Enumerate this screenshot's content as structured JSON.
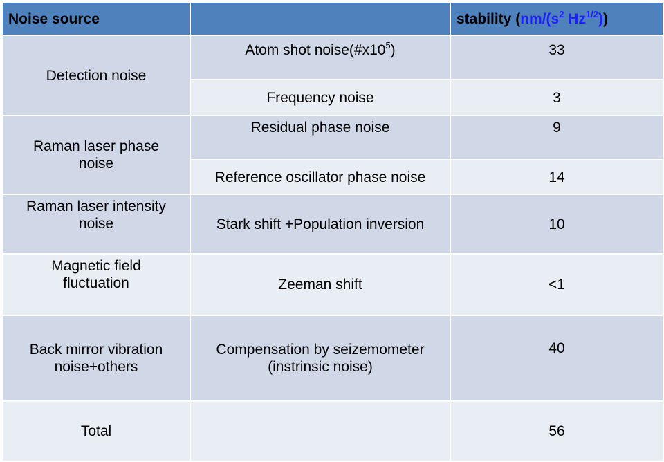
{
  "header": {
    "col1": "Noise source",
    "col2": "",
    "col3_prefix": "stability  (",
    "col3_unit_a": "nm/(s",
    "col3_sup_a": "2",
    "col3_unit_b": " Hz",
    "col3_sup_b": "1/2",
    "col3_unit_c": ")",
    "col3_suffix": ")"
  },
  "rows": {
    "detection": {
      "source": "Detection noise",
      "item1_text": "Atom shot noise(#x10",
      "item1_sup": "5",
      "item1_close": ")",
      "item1_value": "33",
      "item2_text": "Frequency noise",
      "item2_value": "3"
    },
    "raman_phase": {
      "source_line1": "Raman  laser phase",
      "source_line2": "noise",
      "item1_text": "Residual phase noise",
      "item1_value": "9",
      "item2_text": "Reference oscillator phase noise",
      "item2_value": "14"
    },
    "raman_intensity": {
      "source_line1": "Raman  laser intensity",
      "source_line2": "noise",
      "item_text": "Stark shift +Population inversion",
      "item_value": "10"
    },
    "magnetic": {
      "source_line1": "Magnetic field",
      "source_line2": "fluctuation",
      "item_text": "Zeeman shift",
      "item_value": "<1"
    },
    "mirror": {
      "source_line1": "Back mirror vibration",
      "source_line2": "noise+others",
      "item_line1": "Compensation by seizemometer",
      "item_line2": "(instrinsic noise)",
      "item_value": "40"
    },
    "total": {
      "source": "Total",
      "item_text": "",
      "item_value": "56"
    }
  },
  "colors": {
    "header_bg": "#4f81bd",
    "row_dark": "#d0d8e8",
    "row_light": "#e9edf4",
    "unit_blue": "#1f1fff"
  }
}
